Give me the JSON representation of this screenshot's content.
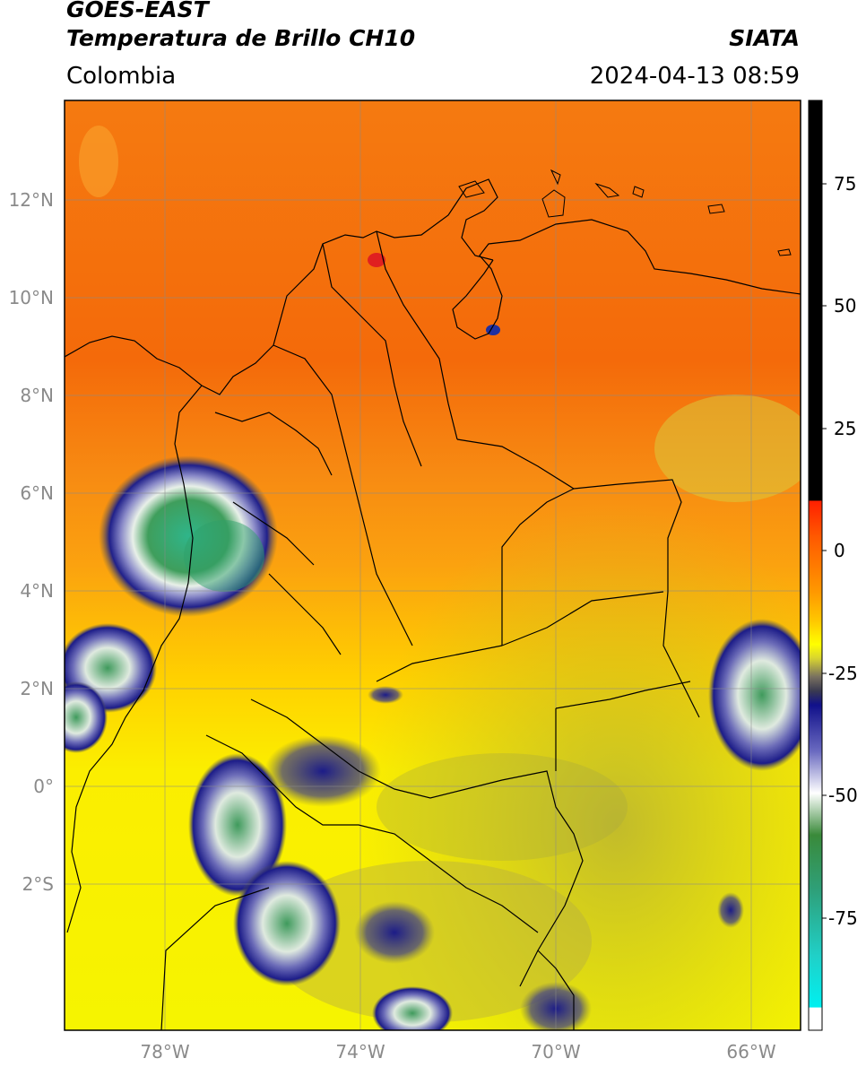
{
  "title": {
    "line1": "GOES-EAST",
    "line2": "Temperatura de Brillo CH10",
    "source": "SIATA",
    "region": "Colombia",
    "datetime": "2024-04-13 08:59"
  },
  "map": {
    "lat_ticks": [
      "12°N",
      "10°N",
      "8°N",
      "6°N",
      "4°N",
      "2°N",
      "0°",
      "2°S"
    ],
    "lon_ticks": [
      "78°W",
      "74°W",
      "70°W",
      "66°W"
    ]
  },
  "colorbar": {
    "tick_labels": [
      "75",
      "50",
      "25",
      "0",
      "-25",
      "-50",
      "-75"
    ]
  },
  "colors": {
    "warm_north": "#f57a10",
    "mid": "#ffb000",
    "south": "#f4f000",
    "cloud_deep": "#23238c",
    "cloud_top": "#2e9b6a"
  }
}
